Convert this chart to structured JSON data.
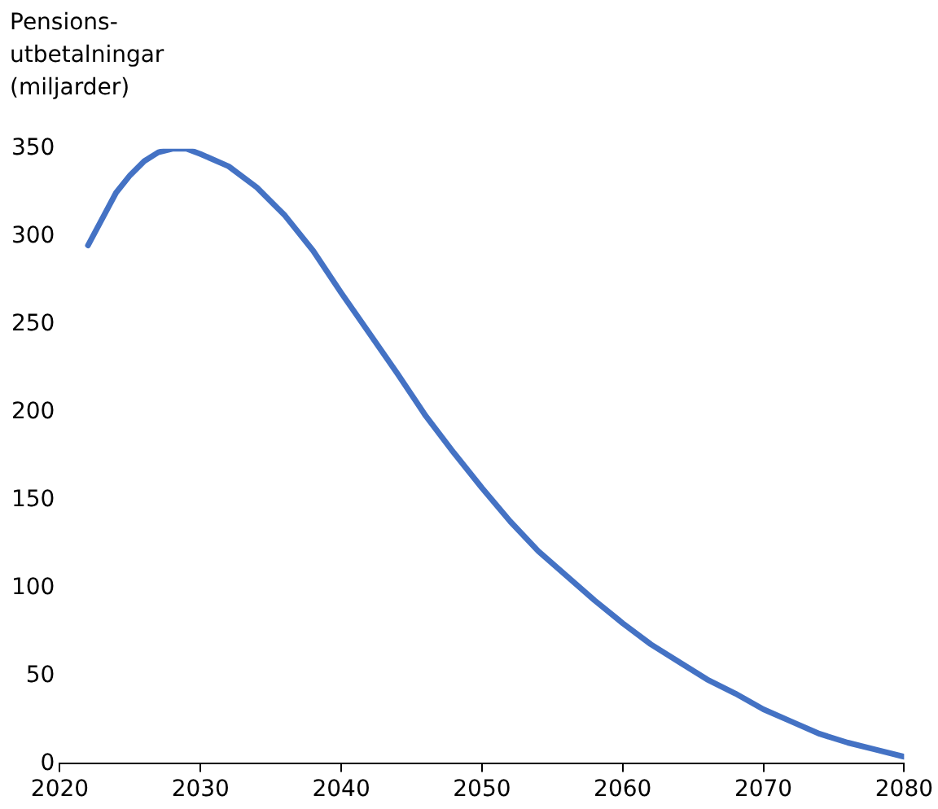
{
  "chart_data": {
    "type": "line",
    "ylabel": "Pensions-\nutbetalningar\n(miljarder)",
    "x": [
      2022,
      2024,
      2025,
      2026,
      2027,
      2028,
      2029,
      2030,
      2032,
      2034,
      2036,
      2038,
      2040,
      2042,
      2044,
      2046,
      2048,
      2050,
      2052,
      2054,
      2056,
      2058,
      2060,
      2062,
      2064,
      2066,
      2068,
      2070,
      2072,
      2074,
      2076,
      2078,
      2080
    ],
    "series": [
      {
        "color": "#4472c4",
        "values": [
          295,
          325,
          335,
          343,
          348,
          350,
          350,
          347,
          340,
          328,
          312,
          292,
          268,
          245,
          222,
          198,
          177,
          157,
          138,
          121,
          107,
          93,
          80,
          68,
          58,
          48,
          40,
          31,
          24,
          17,
          12,
          8,
          4
        ]
      }
    ],
    "xlim": [
      2020,
      2080
    ],
    "xticks": [
      2020,
      2030,
      2040,
      2050,
      2060,
      2070,
      2080
    ],
    "ylim": [
      0,
      350
    ],
    "yticks": [
      0,
      50,
      100,
      150,
      200,
      250,
      300,
      350
    ],
    "grid": false,
    "legend": false,
    "marker": "none",
    "line_style": "solid"
  }
}
